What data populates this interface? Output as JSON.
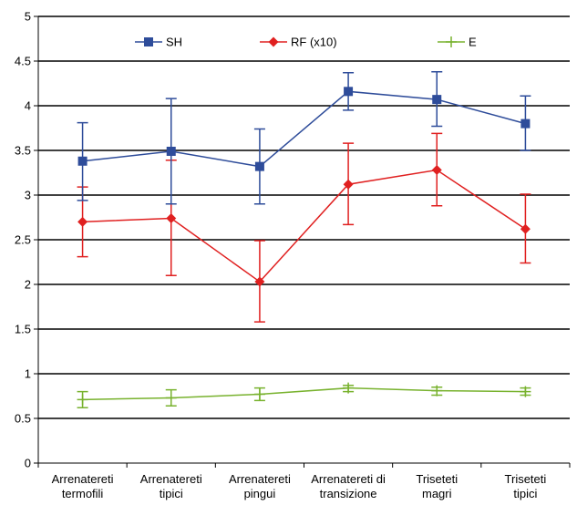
{
  "chart_data": {
    "type": "line",
    "categories": [
      [
        "Arrenatereti",
        "termofili"
      ],
      [
        "Arrenatereti",
        "tipici"
      ],
      [
        "Arrenatereti",
        "pingui"
      ],
      [
        "Arrenatereti di",
        "transizione"
      ],
      [
        "Triseteti",
        "magri"
      ],
      [
        "Triseteti",
        "tipici"
      ]
    ],
    "ylim": [
      0,
      5
    ],
    "yticks": [
      "0",
      "0.5",
      "1",
      "1.5",
      "2",
      "2.5",
      "3",
      "3.5",
      "4",
      "4.5",
      "5"
    ],
    "grid": true,
    "legend_position": "top",
    "series": [
      {
        "name": "SH",
        "color": "#2e4c9a",
        "marker": "square",
        "values": [
          3.38,
          3.49,
          3.32,
          4.16,
          4.07,
          3.8
        ],
        "error_low": [
          2.94,
          2.9,
          2.9,
          3.95,
          3.77,
          3.5
        ],
        "error_high": [
          3.81,
          4.08,
          3.74,
          4.37,
          4.38,
          4.11
        ]
      },
      {
        "name": "RF (x10)",
        "color": "#e02020",
        "marker": "diamond",
        "values": [
          2.7,
          2.74,
          2.03,
          3.12,
          3.28,
          2.62
        ],
        "error_low": [
          2.31,
          2.1,
          1.58,
          2.67,
          2.88,
          2.24
        ],
        "error_high": [
          3.09,
          3.39,
          2.49,
          3.58,
          3.69,
          3.01
        ]
      },
      {
        "name": "E",
        "color": "#78b22e",
        "marker": "plus",
        "values": [
          0.71,
          0.73,
          0.77,
          0.84,
          0.81,
          0.8
        ],
        "error_low": [
          0.62,
          0.64,
          0.7,
          0.8,
          0.76,
          0.76
        ],
        "error_high": [
          0.8,
          0.82,
          0.84,
          0.87,
          0.85,
          0.84
        ]
      }
    ]
  }
}
